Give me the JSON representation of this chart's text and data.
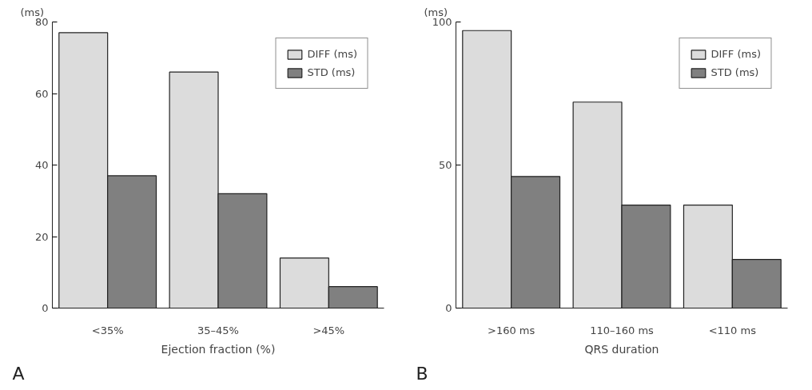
{
  "chart_data": [
    {
      "type": "bar",
      "categories": [
        "<35%",
        "35–45%",
        ">45%"
      ],
      "xlabel": "Ejection fraction (%)",
      "ylabel": "(ms)",
      "ylim": [
        0,
        80
      ],
      "yticks": [
        0,
        20,
        40,
        60,
        80
      ],
      "grid": false,
      "legend": "top right",
      "annotations": [
        "A"
      ],
      "series": [
        {
          "name": "DIFF (ms)",
          "color": "#dcdcdc",
          "values": [
            77,
            66,
            14
          ]
        },
        {
          "name": "STD (ms)",
          "color": "#808080",
          "values": [
            37,
            32,
            6
          ]
        }
      ]
    },
    {
      "type": "bar",
      "categories": [
        ">160 ms",
        "110–160 ms",
        "<110 ms"
      ],
      "xlabel": "QRS duration",
      "ylabel": "(ms)",
      "ylim": [
        0,
        100
      ],
      "yticks": [
        0,
        50,
        100
      ],
      "grid": false,
      "legend": "top right",
      "annotations": [
        "B"
      ],
      "series": [
        {
          "name": "DIFF (ms)",
          "color": "#dcdcdc",
          "values": [
            97,
            72,
            36
          ]
        },
        {
          "name": "STD (ms)",
          "color": "#808080",
          "values": [
            46,
            36,
            17
          ]
        }
      ]
    }
  ]
}
